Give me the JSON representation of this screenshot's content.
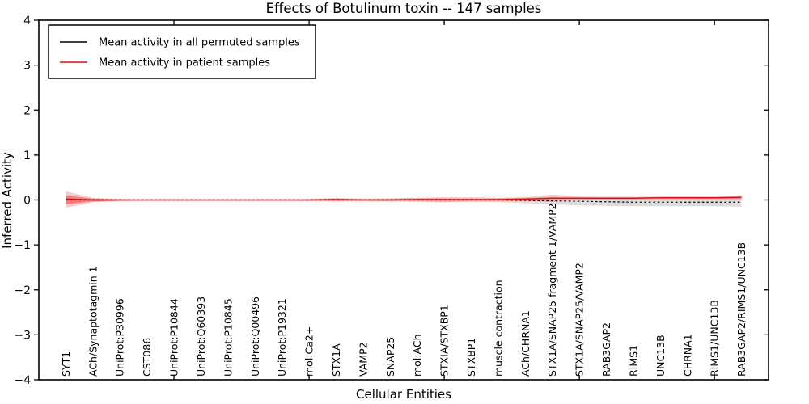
{
  "title": "Effects of Botulinum toxin -- 147 samples",
  "legend": {
    "items": [
      {
        "label": "Mean activity in all permuted samples",
        "color": "#000000"
      },
      {
        "label": "Mean activity in patient samples",
        "color": "#ff0000"
      }
    ]
  },
  "chart_data": {
    "type": "line",
    "title": "Effects of Botulinum toxin -- 147 samples",
    "xlabel": "Cellular Entities",
    "ylabel": "Inferred Activity",
    "ylim": [
      -4,
      4
    ],
    "grid": false,
    "legend_position": "upper left",
    "yticks": [
      {
        "v": 4,
        "label": "4"
      },
      {
        "v": 3,
        "label": "3"
      },
      {
        "v": 2,
        "label": "2"
      },
      {
        "v": 1,
        "label": "1"
      },
      {
        "v": 0,
        "label": "0"
      },
      {
        "v": -1,
        "label": "−1"
      },
      {
        "v": -2,
        "label": "−2"
      },
      {
        "v": -3,
        "label": "−3"
      },
      {
        "v": -4,
        "label": "−4"
      }
    ],
    "x_major_ticks": [
      5,
      10,
      15,
      20,
      25
    ],
    "categories": [
      "SYT1",
      "ACh/Synaptotagmin 1",
      "UniProt:P30996",
      "CST086",
      "UniProt:P10844",
      "UniProt:Q60393",
      "UniProt:P10845",
      "UniProt:Q00496",
      "UniProt:P19321",
      "mol:Ca2+",
      "STX1A",
      "VAMP2",
      "SNAP25",
      "mol:ACh",
      "STXIA/STXBP1",
      "STXBP1",
      "muscle contraction",
      "ACh/CHRNA1",
      "STX1A/SNAP25 fragment 1/VAMP2",
      "STX1A/SNAP25/VAMP2",
      "RAB3GAP2",
      "RIMS1",
      "UNC13B",
      "CHRNA1",
      "RIMS1/UNC13B",
      "RAB3GAP2/RIMS1/UNC13B"
    ],
    "series": [
      {
        "id": "permuted",
        "name": "Mean activity in all permuted samples",
        "color": "#000000",
        "dash": "2.5 3",
        "line_width": 1.2,
        "zorder": 2,
        "band_color": "rgba(130,130,130,0.28)",
        "values": [
          0,
          0,
          0,
          0,
          0,
          0,
          0,
          0,
          0,
          0,
          0,
          0,
          0,
          0,
          0,
          0,
          0,
          -0.01,
          -0.02,
          -0.03,
          -0.04,
          -0.05,
          -0.05,
          -0.05,
          -0.05,
          -0.05
        ],
        "band_upper": [
          0.1,
          0.03,
          0.02,
          0.015,
          0.015,
          0.015,
          0.015,
          0.015,
          0.015,
          0.02,
          0.03,
          0.02,
          0.03,
          0.04,
          0.04,
          0.03,
          0.04,
          0.05,
          0.06,
          0.04,
          0.03,
          0.03,
          0.03,
          0.03,
          0.04,
          0.05
        ],
        "band_lower": [
          -0.1,
          -0.03,
          -0.02,
          -0.015,
          -0.015,
          -0.015,
          -0.015,
          -0.015,
          -0.015,
          -0.02,
          -0.03,
          -0.02,
          -0.03,
          -0.04,
          -0.05,
          -0.04,
          -0.05,
          -0.07,
          -0.1,
          -0.12,
          -0.13,
          -0.14,
          -0.14,
          -0.14,
          -0.14,
          -0.15
        ]
      },
      {
        "id": "patient",
        "name": "Mean activity in patient samples",
        "color": "#ff0000",
        "dash": null,
        "line_width": 1.5,
        "zorder": 1,
        "band_color": "rgba(255,0,0,0.22)",
        "band2_color": "rgba(255,0,0,0.25)",
        "values": [
          0.02,
          0,
          0,
          0,
          0,
          0,
          0,
          0,
          0,
          0,
          0.01,
          0,
          0,
          0.01,
          0.01,
          0.01,
          0.01,
          0.02,
          0.04,
          0.04,
          0.04,
          0.04,
          0.05,
          0.05,
          0.05,
          0.06
        ],
        "band_upper": [
          0.19,
          0.05,
          0.02,
          0.015,
          0.015,
          0.015,
          0.015,
          0.015,
          0.015,
          0.02,
          0.05,
          0.03,
          0.04,
          0.05,
          0.06,
          0.06,
          0.05,
          0.06,
          0.12,
          0.08,
          0.07,
          0.07,
          0.08,
          0.08,
          0.08,
          0.1
        ],
        "band_lower": [
          -0.17,
          -0.05,
          -0.02,
          -0.015,
          -0.015,
          -0.015,
          -0.015,
          -0.015,
          -0.015,
          -0.02,
          -0.03,
          -0.02,
          -0.02,
          -0.03,
          -0.04,
          -0.03,
          -0.03,
          -0.02,
          -0.04,
          0.0,
          0.01,
          0.01,
          0.02,
          0.02,
          0.02,
          0.02
        ],
        "band2_upper": [
          0.1,
          0.03,
          0.01,
          null,
          null,
          null,
          null,
          null,
          null,
          null,
          null,
          null,
          null,
          null,
          null,
          null,
          null,
          null,
          null,
          null,
          null,
          null,
          null,
          null,
          null,
          null
        ],
        "band2_lower": [
          -0.09,
          -0.03,
          -0.01,
          null,
          null,
          null,
          null,
          null,
          null,
          null,
          null,
          null,
          null,
          null,
          null,
          null,
          null,
          null,
          null,
          null,
          null,
          null,
          null,
          null,
          null,
          null
        ]
      }
    ]
  }
}
